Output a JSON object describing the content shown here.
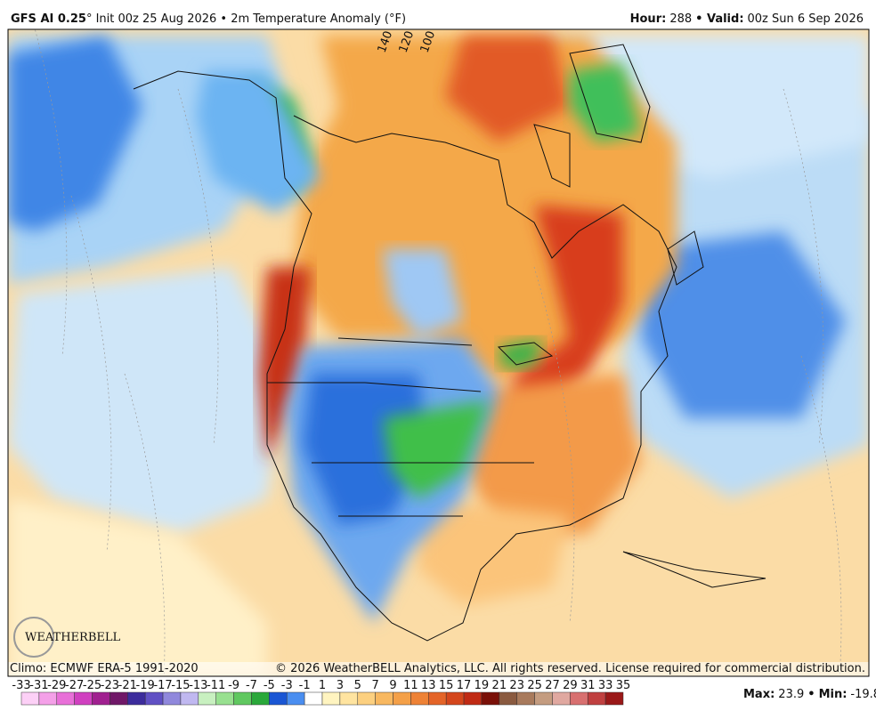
{
  "header": {
    "model": "GFS AI 0.25",
    "title": "° Init 00z 25 Aug 2026 • 2m Temperature Anomaly (°F)",
    "hour_label": "Hour:",
    "hour": 288,
    "valid_label": "• Valid:",
    "valid": "00z Sun 6 Sep 2026"
  },
  "map": {
    "longitude_labels": [
      "140 W",
      "120 W",
      "100 W"
    ],
    "logo": "WEATHERBELL",
    "climo": "Climo: ECMWF ERA-5 1991-2020",
    "copyright": "© 2026 WeatherBELL Analytics, LLC. All rights reserved. License required for commercial distribution."
  },
  "colorbar": {
    "ticks": [
      -33,
      -31,
      -29,
      -27,
      -25,
      -23,
      -21,
      -19,
      -17,
      -15,
      -13,
      -11,
      -9,
      -7,
      -5,
      -3,
      -1,
      1,
      3,
      5,
      7,
      9,
      11,
      13,
      15,
      17,
      19,
      21,
      23,
      25,
      27,
      29,
      31,
      33,
      35
    ],
    "colors": [
      "#fcd0f6",
      "#f4a0e8",
      "#e870d8",
      "#d040c0",
      "#a02090",
      "#701868",
      "#3c2c9c",
      "#6050c4",
      "#9088dc",
      "#c0b8f0",
      "#c8f0c0",
      "#98e090",
      "#60c860",
      "#2aa83a",
      "#1a56d4",
      "#4a8ef0",
      "#ffffff",
      "#fff4c0",
      "#ffe4a0",
      "#fcd080",
      "#f8b860",
      "#f4a048",
      "#ee8236",
      "#e46428",
      "#d4461c",
      "#c02a14",
      "#7a1008",
      "#8a5a40",
      "#a87a5c",
      "#c49c80",
      "#e0a8a0",
      "#d87070",
      "#c04040",
      "#9a1818"
    ]
  },
  "stats": {
    "max_label": "Max:",
    "max": 23.9,
    "separator": "•",
    "min_label": "Min:",
    "min": -19.8
  }
}
